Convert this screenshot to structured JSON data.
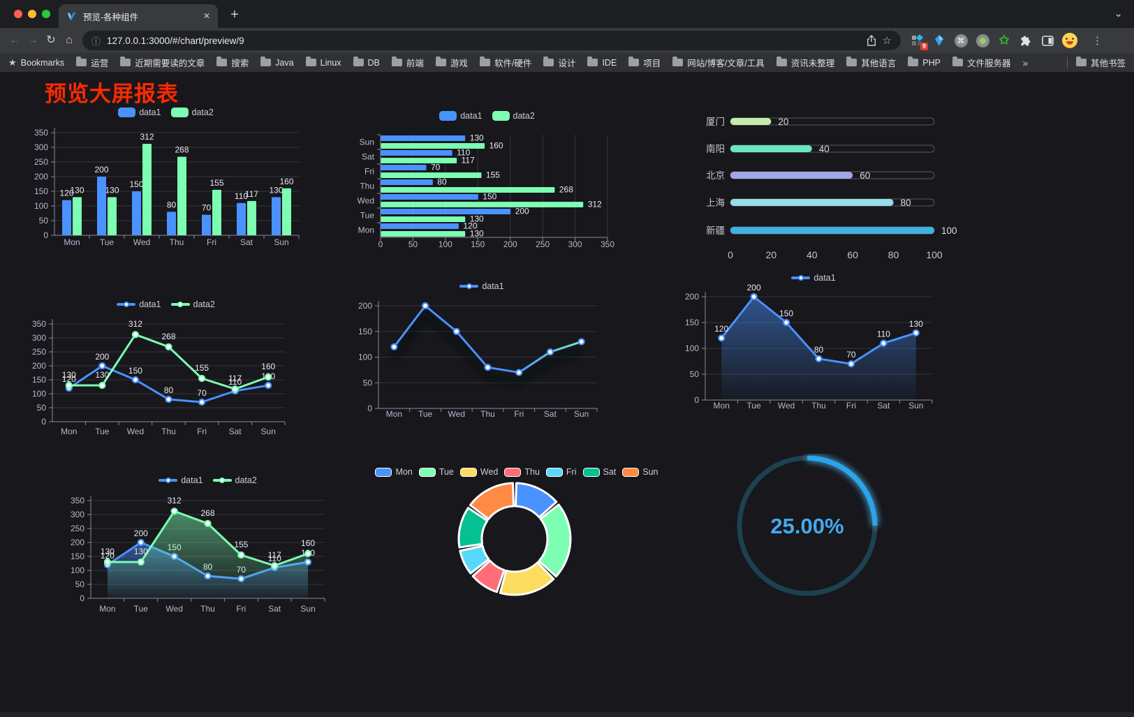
{
  "browser": {
    "tab_title": "预览-各种组件",
    "url": "127.0.0.1:3000/#/chart/preview/9",
    "ext_badge": "9",
    "bookmarks_label": "Bookmarks",
    "bookmark_folders": [
      "运营",
      "近期需要读的文章",
      "搜索",
      "Java",
      "Linux",
      "DB",
      "前端",
      "游戏",
      "软件/硬件",
      "设计",
      "IDE",
      "项目",
      "网站/博客/文章/工具",
      "资讯未整理",
      "其他语言",
      "PHP",
      "文件服务器"
    ],
    "bookmarks_overflow": "»",
    "other_bookmarks": "其他书签"
  },
  "icons": {
    "back": "←",
    "forward": "→",
    "reload": "↻",
    "home": "⌂",
    "info": "ⓘ",
    "star": "☆",
    "chevron": "⌄",
    "menu": "⋮",
    "new_tab": "+",
    "close": "✕",
    "bookmark_star": "★",
    "command": "⌘",
    "green_star": "✩"
  },
  "page": {
    "title": "预览大屏报表"
  },
  "chart_data": [
    {
      "id": "bar-vertical",
      "type": "bar",
      "legend_position": "top",
      "grid": true,
      "categories": [
        "Mon",
        "Tue",
        "Wed",
        "Thu",
        "Fri",
        "Sat",
        "Sun"
      ],
      "series": [
        {
          "name": "data1",
          "color": "#4992ff",
          "values": [
            120,
            200,
            150,
            80,
            70,
            110,
            130
          ]
        },
        {
          "name": "data2",
          "color": "#7cffb2",
          "values": [
            130,
            130,
            312,
            268,
            155,
            117,
            160
          ]
        }
      ],
      "ylim": [
        0,
        350
      ],
      "yticks": [
        0,
        50,
        100,
        150,
        200,
        250,
        300,
        350
      ]
    },
    {
      "id": "bar-horizontal",
      "type": "bar",
      "orientation": "horizontal",
      "legend_position": "top",
      "grid": true,
      "categories": [
        "Sun",
        "Sat",
        "Fri",
        "Thu",
        "Wed",
        "Tue",
        "Mon"
      ],
      "series": [
        {
          "name": "data1",
          "color": "#4992ff",
          "values": [
            130,
            110,
            70,
            80,
            150,
            200,
            120
          ]
        },
        {
          "name": "data2",
          "color": "#7cffb2",
          "values": [
            160,
            117,
            155,
            268,
            312,
            130,
            130
          ]
        }
      ],
      "xlim": [
        0,
        350
      ],
      "xticks": [
        0,
        50,
        100,
        150,
        200,
        250,
        300,
        350
      ]
    },
    {
      "id": "city-progress",
      "type": "bar",
      "orientation": "progress",
      "rows": [
        {
          "label": "厦门",
          "value": 20,
          "color": "#c4ebad"
        },
        {
          "label": "南阳",
          "value": 40,
          "color": "#6be6c1"
        },
        {
          "label": "北京",
          "value": 60,
          "color": "#a0a7e6"
        },
        {
          "label": "上海",
          "value": 80,
          "color": "#96dee8"
        },
        {
          "label": "新疆",
          "value": 100,
          "color": "#3fb1e3"
        }
      ],
      "xlim": [
        0,
        100
      ],
      "xticks": [
        0,
        20,
        40,
        60,
        80,
        100
      ]
    },
    {
      "id": "line-two-series",
      "type": "line",
      "legend_position": "top",
      "grid": true,
      "categories": [
        "Mon",
        "Tue",
        "Wed",
        "Thu",
        "Fri",
        "Sat",
        "Sun"
      ],
      "series": [
        {
          "name": "data1",
          "color": "#4992ff",
          "values": [
            120,
            200,
            150,
            80,
            70,
            110,
            130
          ]
        },
        {
          "name": "data2",
          "color": "#7cffb2",
          "values": [
            130,
            130,
            312,
            268,
            155,
            117,
            160
          ]
        }
      ],
      "ylim": [
        0,
        350
      ],
      "yticks": [
        0,
        50,
        100,
        150,
        200,
        250,
        300,
        350
      ]
    },
    {
      "id": "line-gradient",
      "type": "line",
      "legend_position": "top",
      "grid": true,
      "categories": [
        "Mon",
        "Tue",
        "Wed",
        "Thu",
        "Fri",
        "Sat",
        "Sun"
      ],
      "series": [
        {
          "name": "data1",
          "color": "#4992ff",
          "gradient_to": "#7cffb2",
          "values": [
            120,
            200,
            150,
            80,
            70,
            110,
            130
          ]
        }
      ],
      "ylim": [
        0,
        200
      ],
      "yticks": [
        0,
        50,
        100,
        150,
        200
      ]
    },
    {
      "id": "area-single",
      "type": "area",
      "legend_position": "top",
      "grid": true,
      "categories": [
        "Mon",
        "Tue",
        "Wed",
        "Thu",
        "Fri",
        "Sat",
        "Sun"
      ],
      "series": [
        {
          "name": "data1",
          "color": "#4992ff",
          "values": [
            120,
            200,
            150,
            80,
            70,
            110,
            130
          ]
        }
      ],
      "ylim": [
        0,
        200
      ],
      "yticks": [
        0,
        50,
        100,
        150,
        200
      ]
    },
    {
      "id": "area-two-series",
      "type": "area",
      "legend_position": "top",
      "grid": true,
      "categories": [
        "Mon",
        "Tue",
        "Wed",
        "Thu",
        "Fri",
        "Sat",
        "Sun"
      ],
      "series": [
        {
          "name": "data1",
          "color": "#4992ff",
          "values": [
            120,
            200,
            150,
            80,
            70,
            110,
            130
          ]
        },
        {
          "name": "data2",
          "color": "#7cffb2",
          "values": [
            130,
            130,
            312,
            268,
            155,
            117,
            160
          ]
        }
      ],
      "ylim": [
        0,
        350
      ],
      "yticks": [
        0,
        50,
        100,
        150,
        200,
        250,
        300,
        350
      ]
    },
    {
      "id": "donut",
      "type": "pie",
      "legend_position": "top",
      "inner_radius_ratio": 0.59,
      "slices": [
        {
          "label": "Mon",
          "value": 120,
          "color": "#4992ff"
        },
        {
          "label": "Tue",
          "value": 200,
          "color": "#7cffb2"
        },
        {
          "label": "Wed",
          "value": 150,
          "color": "#fddd60"
        },
        {
          "label": "Thu",
          "value": 80,
          "color": "#ff6e76"
        },
        {
          "label": "Fri",
          "value": 70,
          "color": "#58d9f9"
        },
        {
          "label": "Sat",
          "value": 110,
          "color": "#05c091"
        },
        {
          "label": "Sun",
          "value": 130,
          "color": "#ff8a45"
        }
      ]
    },
    {
      "id": "gauge-progress",
      "type": "gauge",
      "value": 25,
      "max": 100,
      "label": "25.00%",
      "color": "#2da4e8",
      "track_color": "#1c4250",
      "label_color": "#45a9ec"
    }
  ]
}
